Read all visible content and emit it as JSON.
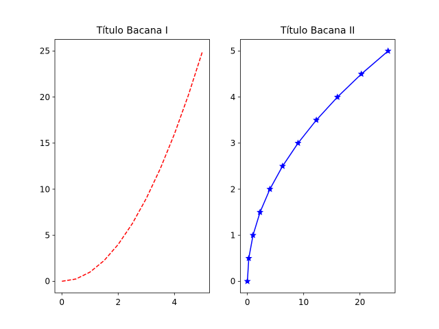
{
  "chart_data": [
    {
      "type": "line",
      "title": "Título Bacana I",
      "xlabel": "",
      "ylabel": "",
      "xlim": [
        -0.25,
        5.25
      ],
      "ylim": [
        -1.25,
        26.25
      ],
      "xticks": [
        "0",
        "2",
        "4"
      ],
      "yticks": [
        "0",
        "5",
        "10",
        "15",
        "20",
        "25"
      ],
      "grid": false,
      "series": [
        {
          "color": "#ff0000",
          "line_style": "dashed",
          "marker": "none",
          "x": [
            0,
            0.5,
            1,
            1.5,
            2,
            2.5,
            3,
            3.5,
            4,
            4.5,
            5
          ],
          "y": [
            0,
            0.25,
            1,
            2.25,
            4,
            6.25,
            9,
            12.25,
            16,
            20.25,
            25
          ]
        }
      ]
    },
    {
      "type": "line",
      "title": "Título Bacana II",
      "xlabel": "",
      "ylabel": "",
      "xlim": [
        -1.25,
        26.25
      ],
      "ylim": [
        -0.25,
        5.25
      ],
      "xticks": [
        "0",
        "10",
        "20"
      ],
      "yticks": [
        "0",
        "1",
        "2",
        "3",
        "4",
        "5"
      ],
      "grid": false,
      "series": [
        {
          "color": "#0000ff",
          "line_style": "solid",
          "marker": "star",
          "x": [
            0,
            0.25,
            1,
            2.25,
            4,
            6.25,
            9,
            12.25,
            16,
            20.25,
            25
          ],
          "y": [
            0,
            0.5,
            1,
            1.5,
            2,
            2.5,
            3,
            3.5,
            4,
            4.5,
            5
          ]
        }
      ]
    }
  ]
}
